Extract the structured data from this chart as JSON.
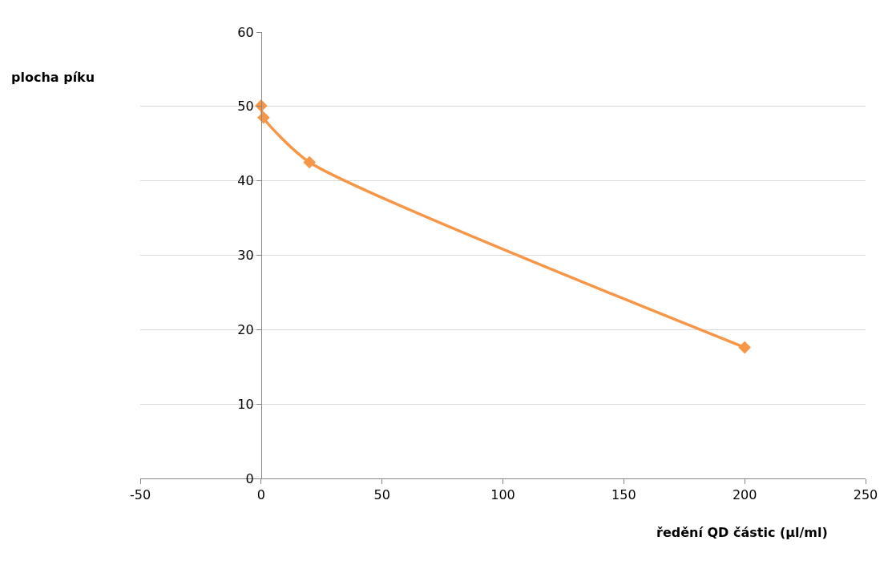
{
  "chart_data": {
    "type": "line",
    "xlabel": "ředění QD částic (µl/ml)",
    "ylabel": "plocha píku",
    "x": [
      0,
      1,
      20,
      200
    ],
    "series": [
      {
        "color": "#f79646",
        "values": [
          50.1,
          48.5,
          42.5,
          17.6
        ]
      }
    ],
    "xlim": [
      -50,
      250
    ],
    "xticks": [
      -50,
      0,
      50,
      100,
      150,
      200,
      250
    ],
    "ylim": [
      0,
      60
    ],
    "yticks": [
      0,
      10,
      20,
      30,
      40,
      50,
      60
    ],
    "grid": "y",
    "marker": "diamond",
    "line_style": "solid",
    "legend": false
  }
}
